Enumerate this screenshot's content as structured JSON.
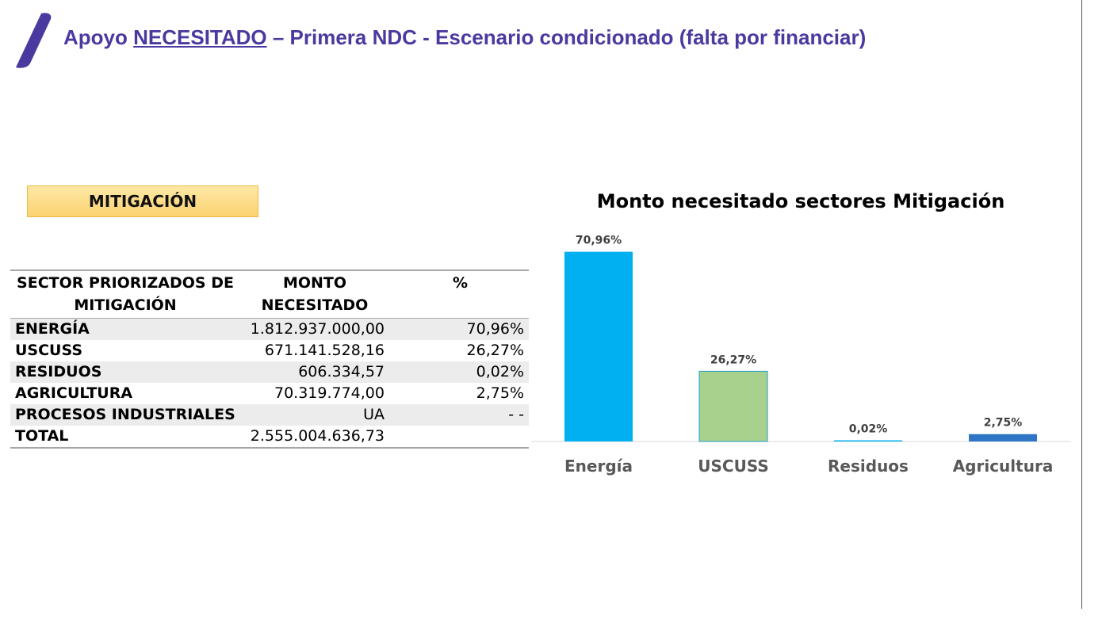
{
  "header": {
    "title_prefix": "Apoyo ",
    "title_emph": "NECESITADO",
    "title_suffix": " – Primera NDC - Escenario condicionado (falta por financiar)",
    "title_color": "#4a3aa0",
    "logo_color": "#4a3aa0"
  },
  "mitigation_label": "MITIGACIÓN",
  "table": {
    "headers": [
      "SECTOR PRIORIZADOS DE MITIGACIÓN",
      "MONTO NECESITADO",
      "%"
    ],
    "rows": [
      {
        "sector": "ENERGÍA",
        "monto": "1.812.937.000,00",
        "pct": "70,96%"
      },
      {
        "sector": "USCUSS",
        "monto": "671.141.528,16",
        "pct": "26,27%"
      },
      {
        "sector": "RESIDUOS",
        "monto": "606.334,57",
        "pct": "0,02%"
      },
      {
        "sector": "AGRICULTURA",
        "monto": "70.319.774,00",
        "pct": "2,75%"
      },
      {
        "sector": "PROCESOS INDUSTRIALES",
        "monto": "UA",
        "pct": "- -"
      },
      {
        "sector": "TOTAL",
        "monto": "2.555.004.636,73",
        "pct": ""
      }
    ]
  },
  "chart_data": {
    "type": "bar",
    "title": "Monto necesitado sectores Mitigación",
    "categories": [
      "Energía",
      "USCUSS",
      "Residuos",
      "Agricultura"
    ],
    "values": [
      70.96,
      26.27,
      0.02,
      2.75
    ],
    "data_labels": [
      "70,96%",
      "26,27%",
      "0,02%",
      "2,75%"
    ],
    "colors": [
      "#00b0f0",
      "#a9d18e",
      "#00b0f0",
      "#2e75c6"
    ],
    "ylim": [
      0,
      75
    ],
    "xlabel": "",
    "ylabel": "",
    "grid": false,
    "legend": "none"
  }
}
